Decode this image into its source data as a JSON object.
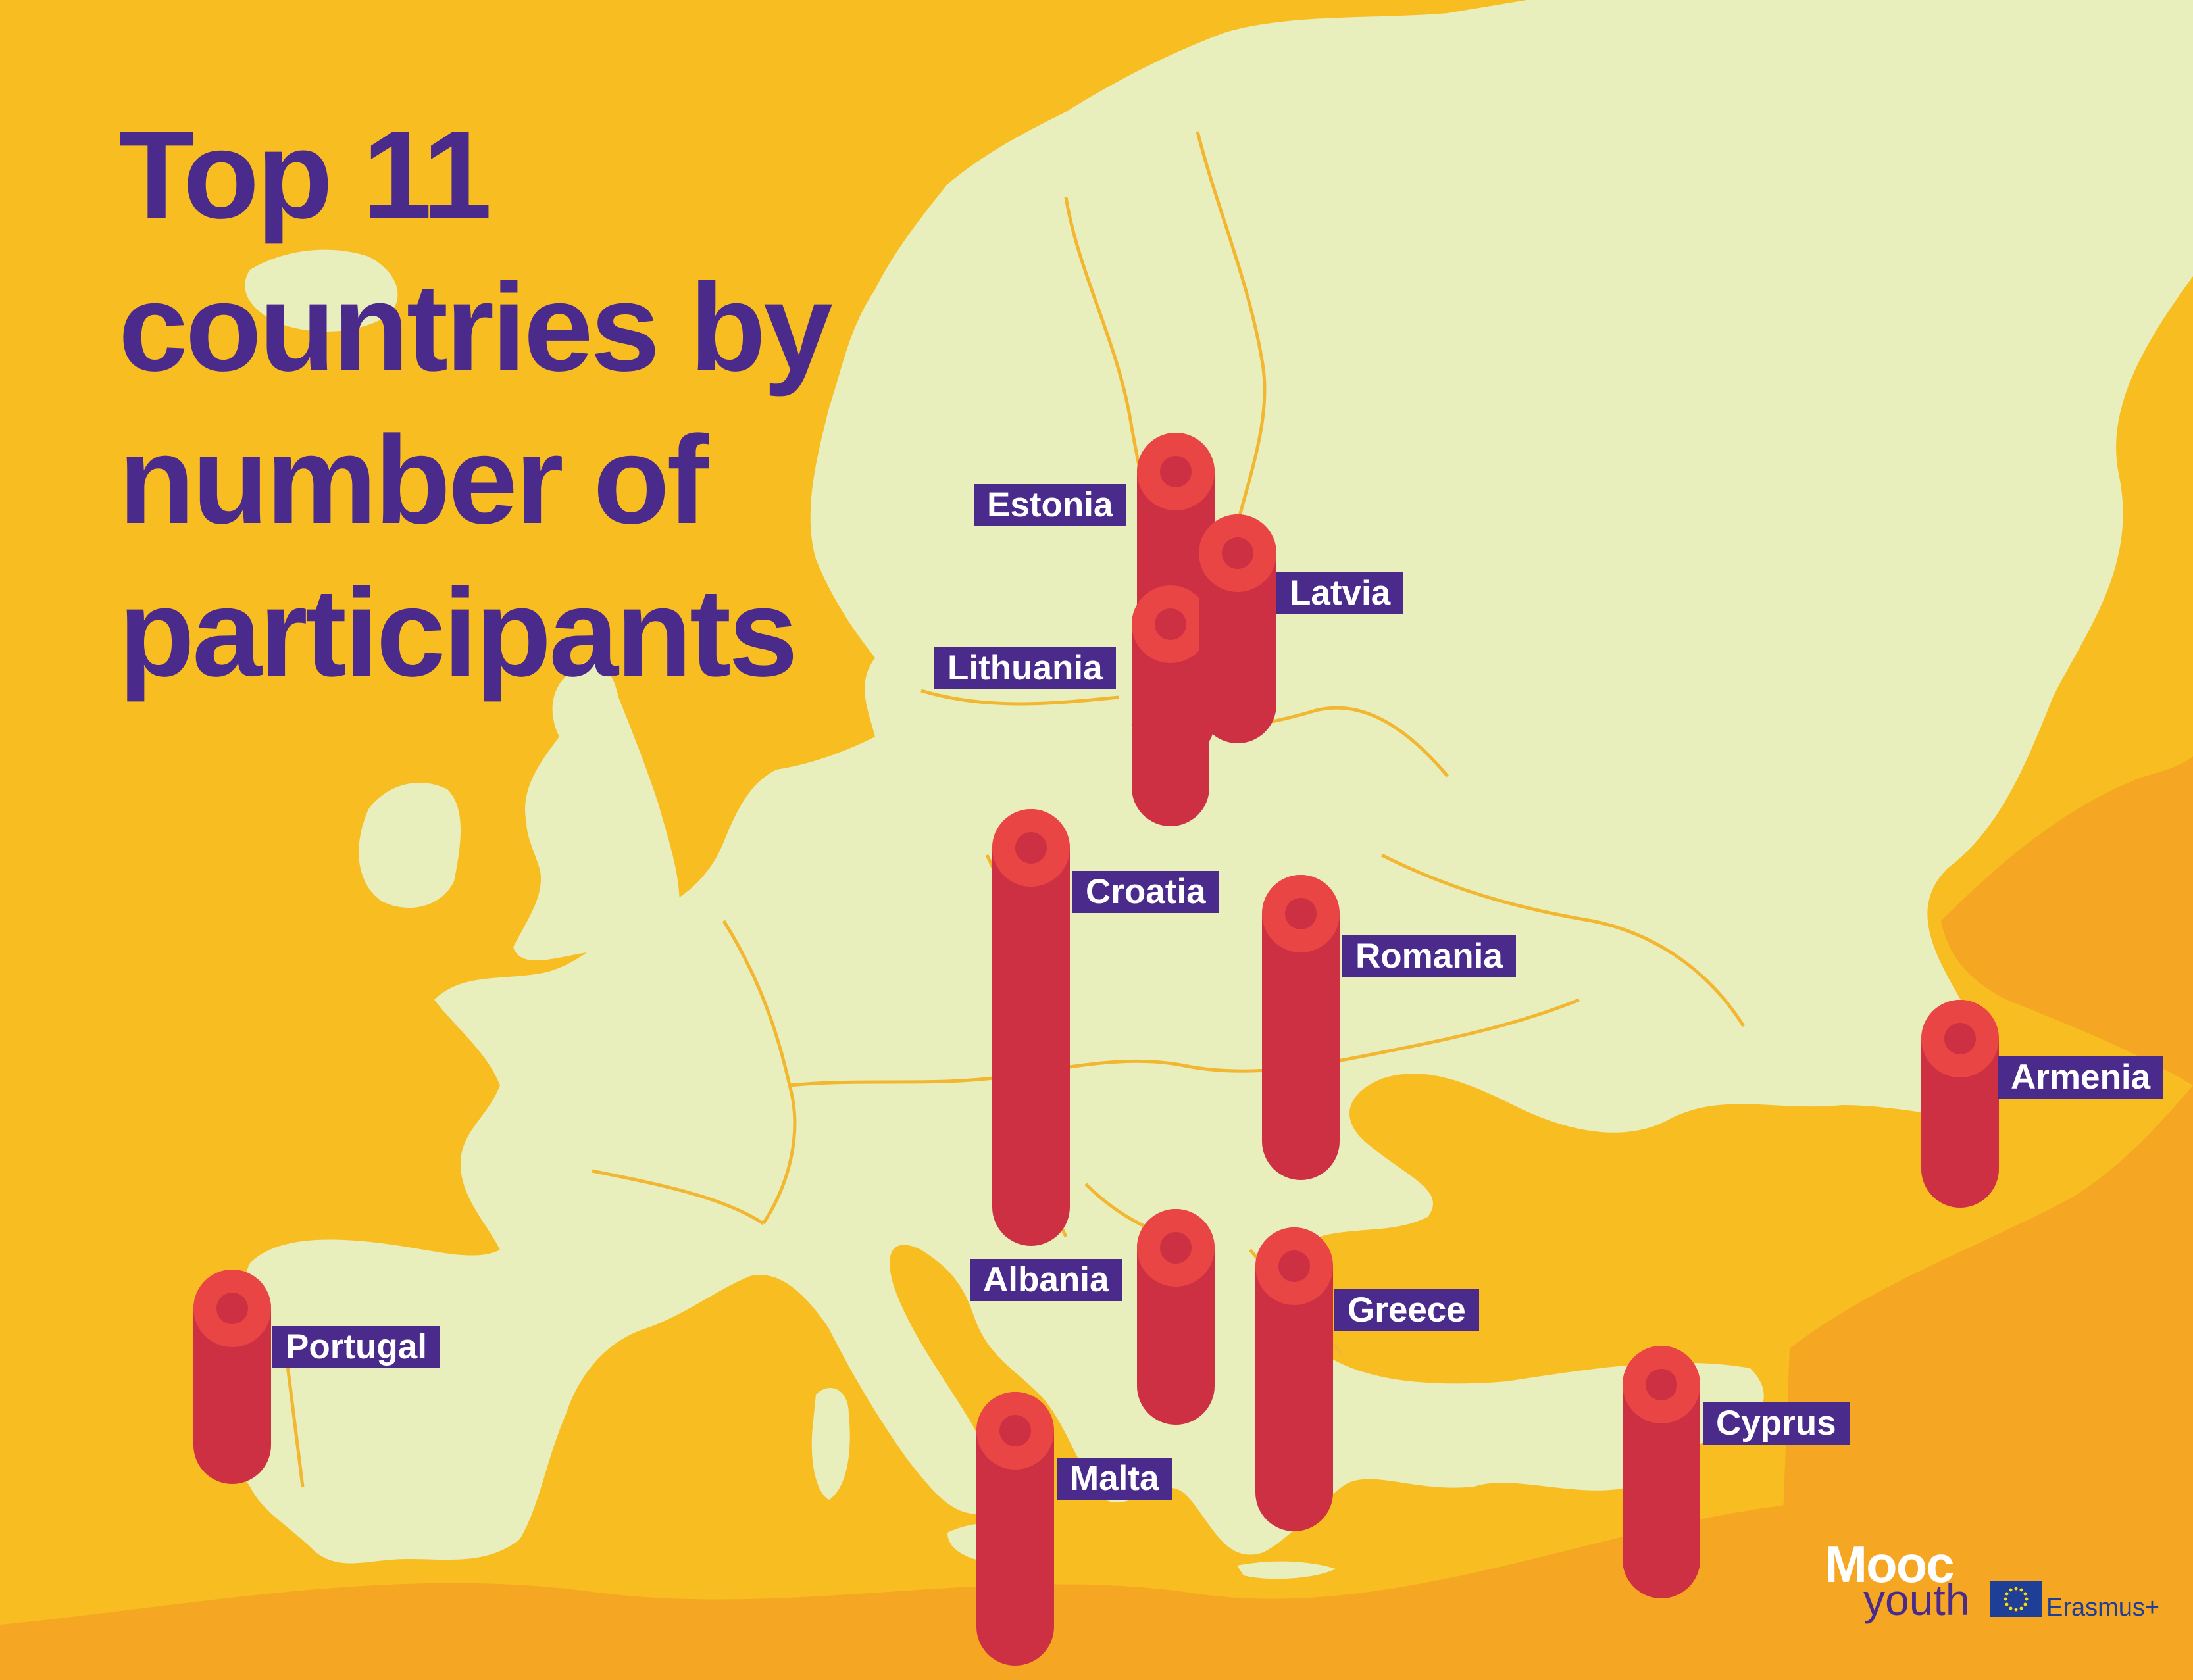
{
  "title_lines": [
    "Top 11",
    "countries by",
    "number of",
    "participants"
  ],
  "colors": {
    "sea": "#f7bd21",
    "land": "#e8eebc",
    "border": "#f2b630",
    "outside_land": "#f5a623",
    "cylinder_body": "#cd3042",
    "cylinder_cap": "#ea4545",
    "label_bg": "#4a2b8c",
    "title": "#4a2b8c"
  },
  "countries": [
    {
      "id": "estonia",
      "name": "Estonia"
    },
    {
      "id": "latvia",
      "name": "Latvia"
    },
    {
      "id": "lithuania",
      "name": "Lithuania"
    },
    {
      "id": "croatia",
      "name": "Croatia"
    },
    {
      "id": "romania",
      "name": "Romania"
    },
    {
      "id": "armenia",
      "name": "Armenia"
    },
    {
      "id": "albania",
      "name": "Albania"
    },
    {
      "id": "greece",
      "name": "Greece"
    },
    {
      "id": "portugal",
      "name": "Portugal"
    },
    {
      "id": "malta",
      "name": "Malta"
    },
    {
      "id": "cyprus",
      "name": "Cyprus"
    }
  ],
  "logos": {
    "mooc": "Mooc",
    "youth": "youth",
    "erasmus": "Erasmus+"
  }
}
